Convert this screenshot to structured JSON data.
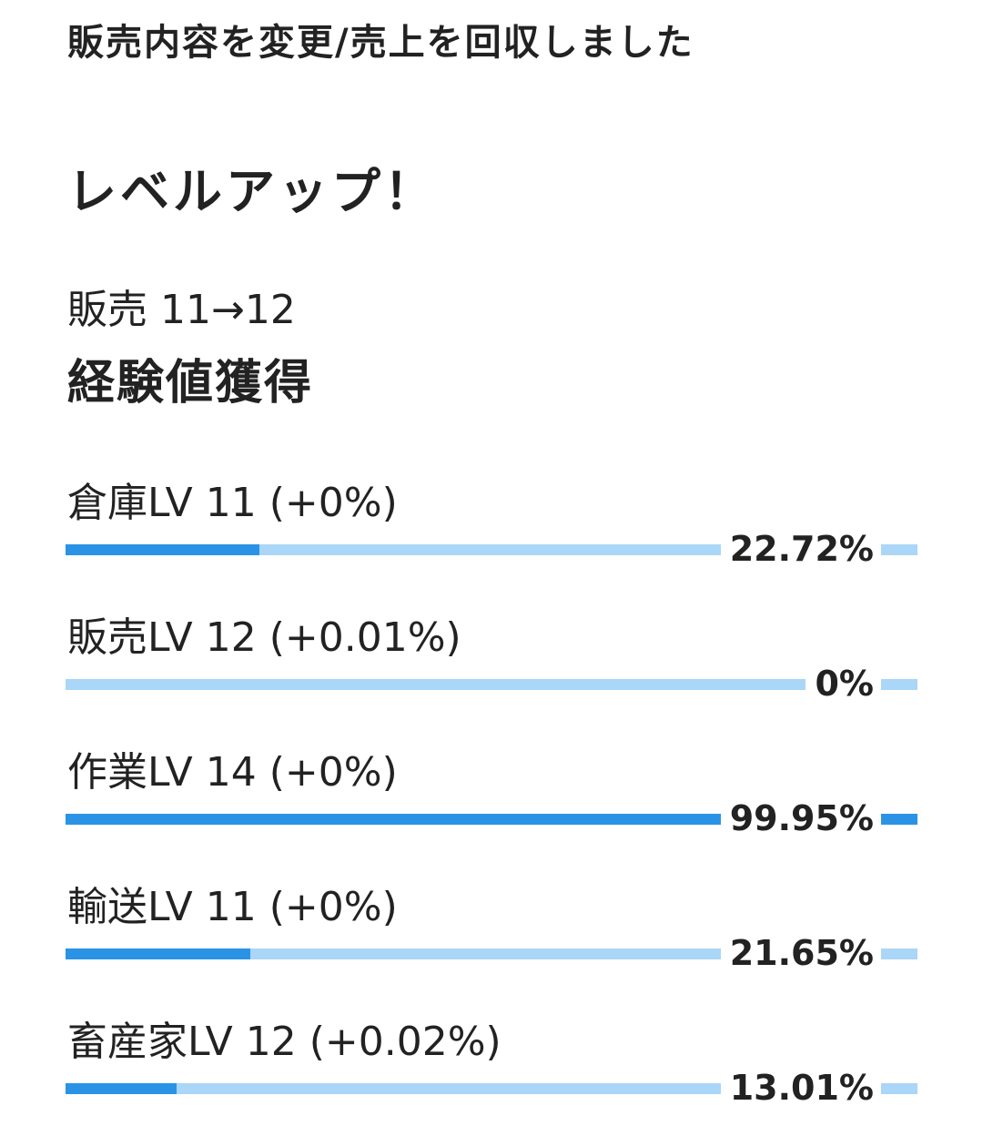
{
  "notice": "販売内容を変更/売上を回収しました",
  "levelup": {
    "title": "レベルアップ！",
    "line": "販売 11→12"
  },
  "exp": {
    "title": "経験値獲得",
    "skills": [
      {
        "label": "倉庫LV 11 (+0%)",
        "progress": 22.72,
        "percent_text": "22.72%"
      },
      {
        "label": "販売LV 12 (+0.01%)",
        "progress": 0,
        "percent_text": "0%"
      },
      {
        "label": "作業LV 14 (+0%)",
        "progress": 99.95,
        "percent_text": "99.95%"
      },
      {
        "label": "輸送LV 11 (+0%)",
        "progress": 21.65,
        "percent_text": "21.65%"
      },
      {
        "label": "畜産家LV 12 (+0.02%)",
        "progress": 13.01,
        "percent_text": "13.01%"
      }
    ]
  },
  "colors": {
    "bar_fill": "#2b93e6",
    "bar_track": "#aad6f7",
    "text": "#222222",
    "background": "#ffffff"
  }
}
